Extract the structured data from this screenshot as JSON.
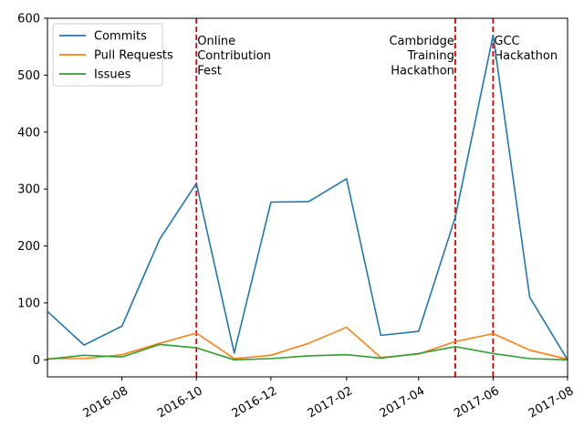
{
  "chart_data": {
    "type": "line",
    "title": "",
    "xlabel": "",
    "ylabel": "",
    "x": [
      "2016-06-01",
      "2016-07-01",
      "2016-08-01",
      "2016-09-01",
      "2016-10-01",
      "2016-11-01",
      "2016-12-01",
      "2017-01-01",
      "2017-02-01",
      "2017-03-01",
      "2017-04-01",
      "2017-05-01",
      "2017-06-01",
      "2017-07-01",
      "2017-08-01"
    ],
    "xlim": [
      "2016-06-01",
      "2017-08-01"
    ],
    "ylim": [
      -30,
      600
    ],
    "x_ticks": [
      {
        "date": "2016-08-01",
        "label": "2016-08"
      },
      {
        "date": "2016-10-01",
        "label": "2016-10"
      },
      {
        "date": "2016-12-01",
        "label": "2016-12"
      },
      {
        "date": "2017-02-01",
        "label": "2017-02"
      },
      {
        "date": "2017-04-01",
        "label": "2017-04"
      },
      {
        "date": "2017-06-01",
        "label": "2017-06"
      },
      {
        "date": "2017-08-01",
        "label": "2017-08"
      }
    ],
    "y_ticks": [
      0,
      100,
      200,
      300,
      400,
      500,
      600
    ],
    "grid": false,
    "legend_position": "top-left",
    "series": [
      {
        "name": "Commits",
        "color": "#1f77b4",
        "values": [
          85,
          26,
          59,
          212,
          310,
          12,
          277,
          278,
          318,
          43,
          50,
          250,
          570,
          110,
          0
        ]
      },
      {
        "name": "Pull Requests",
        "color": "#ff7f0e",
        "values": [
          2,
          2,
          9,
          29,
          47,
          2,
          8,
          29,
          57,
          4,
          10,
          32,
          46,
          17,
          1
        ]
      },
      {
        "name": "Issues",
        "color": "#2ca02c",
        "values": [
          1,
          8,
          5,
          27,
          21,
          0,
          2,
          7,
          9,
          3,
          11,
          23,
          11,
          2,
          0
        ]
      }
    ],
    "events": [
      {
        "date": "2016-10-01",
        "lines": [
          "Online",
          "Contribution",
          "Fest"
        ],
        "align": "left"
      },
      {
        "date": "2017-05-01",
        "lines": [
          "Cambridge",
          "Training",
          "Hackathon"
        ],
        "align": "right"
      },
      {
        "date": "2017-06-01",
        "lines": [
          "GCC",
          "Hackathon"
        ],
        "align": "left"
      }
    ],
    "event_line_color": "#e00000"
  }
}
